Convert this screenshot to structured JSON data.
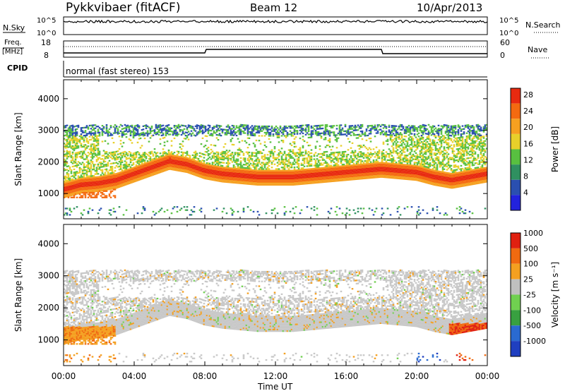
{
  "header": {
    "station": "Pykkvibaer (fitACF)",
    "beam": "Beam 12",
    "date": "10/Apr/2013"
  },
  "params": {
    "nsky_label": "N.Sky",
    "nsky_ticks": [
      "10^5",
      "10^0"
    ],
    "nsearch_label": "N.Search",
    "nsearch_ticks": [
      "10^5",
      "10^0"
    ],
    "freq_label_top": "Freq.",
    "freq_label_bottom": "[MHz]",
    "freq_ticks": [
      "18",
      "8"
    ],
    "nave_label": "Nave",
    "nave_ticks": [
      "60",
      "0"
    ],
    "cpid_label": "CPID",
    "cpid_value": "normal (fast stereo) 153"
  },
  "colors": {
    "power_scale": [
      "#2222dd",
      "#2a4fb0",
      "#2f9060",
      "#58c040",
      "#e8d02a",
      "#f6a020",
      "#f46a10",
      "#e82a10"
    ],
    "velocity_scale": [
      "#1f3fc0",
      "#2a6ad0",
      "#38a040",
      "#70d050",
      "#c0c0c0",
      "#f4a020",
      "#f06a10",
      "#e02010"
    ],
    "grey_fill": "#c8c8c8"
  },
  "chart_data": [
    {
      "type": "heatmap",
      "name": "power",
      "xlabel": "Time UT",
      "ylabel": "Slant Range [km]",
      "xlim": [
        0,
        24
      ],
      "ylim": [
        200,
        4600
      ],
      "x_ticks": [
        "00:00",
        "04:00",
        "08:00",
        "12:00",
        "16:00",
        "20:00",
        "00:00"
      ],
      "y_ticks": [
        1000,
        2000,
        3000,
        4000
      ],
      "colorbar_label": "Power [dB]",
      "colorbar_ticks": [
        28,
        24,
        20,
        16,
        12,
        8,
        4
      ],
      "colorbar_range": [
        0,
        30
      ],
      "main_band_center_km": [
        [
          0,
          1100
        ],
        [
          1,
          1250
        ],
        [
          2,
          1300
        ],
        [
          3,
          1400
        ],
        [
          4,
          1600
        ],
        [
          5,
          1800
        ],
        [
          6,
          2000
        ],
        [
          7,
          1900
        ],
        [
          8,
          1700
        ],
        [
          9,
          1600
        ],
        [
          10,
          1550
        ],
        [
          11,
          1500
        ],
        [
          12,
          1500
        ],
        [
          13,
          1500
        ],
        [
          14,
          1550
        ],
        [
          15,
          1600
        ],
        [
          16,
          1650
        ],
        [
          17,
          1700
        ],
        [
          18,
          1750
        ],
        [
          19,
          1700
        ],
        [
          20,
          1650
        ],
        [
          21,
          1500
        ],
        [
          22,
          1400
        ],
        [
          23,
          1500
        ],
        [
          24,
          1600
        ]
      ]
    },
    {
      "type": "heatmap",
      "name": "velocity",
      "xlabel": "Time UT",
      "ylabel": "Slant Range [km]",
      "xlim": [
        0,
        24
      ],
      "ylim": [
        200,
        4600
      ],
      "x_ticks": [
        "00:00",
        "04:00",
        "08:00",
        "12:00",
        "16:00",
        "20:00",
        "00:00"
      ],
      "y_ticks": [
        1000,
        2000,
        3000,
        4000
      ],
      "colorbar_label": "Velocity [m s^-1]",
      "colorbar_ticks": [
        "1000",
        "500",
        "100",
        "25",
        "-25",
        "-100",
        "-500",
        "-1000"
      ]
    }
  ]
}
